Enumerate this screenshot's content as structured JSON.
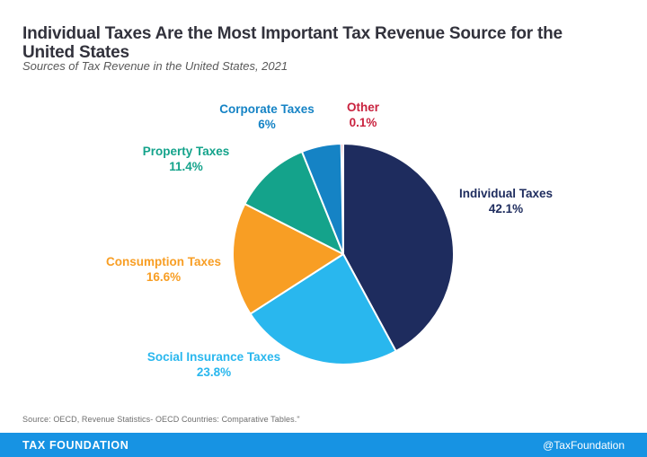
{
  "header": {
    "title": "Individual Taxes Are the Most Important Tax Revenue Source for the United States",
    "subtitle": "Sources of Tax Revenue in the United States, 2021"
  },
  "chart_data": {
    "type": "pie",
    "title": "Sources of Tax Revenue in the United States, 2021",
    "unit": "%",
    "start_angle_deg": 0,
    "direction": "clockwise",
    "total": 100,
    "slices": [
      {
        "label": "Individual Taxes",
        "value": 42.1,
        "display_value": "42.1%",
        "color": "#1e2c5e"
      },
      {
        "label": "Social Insurance Taxes",
        "value": 23.8,
        "display_value": "23.8%",
        "color": "#29b7ee"
      },
      {
        "label": "Consumption Taxes",
        "value": 16.6,
        "display_value": "16.6%",
        "color": "#f89e24"
      },
      {
        "label": "Property Taxes",
        "value": 11.4,
        "display_value": "11.4%",
        "color": "#14a38b"
      },
      {
        "label": "Corporate Taxes",
        "value": 6,
        "display_value": "6%",
        "color": "#1583c5"
      },
      {
        "label": "Other",
        "value": 0.1,
        "display_value": "0.1%",
        "color": "#c9233f"
      }
    ],
    "slice_gap_color": "#ffffff"
  },
  "footer": {
    "source_note": "Source: OECD, Revenue Statistics- OECD Countries: Comparative Tables.\"",
    "brand": "TAX FOUNDATION",
    "handle": "@TaxFoundation",
    "bar_color": "#1793e3"
  }
}
